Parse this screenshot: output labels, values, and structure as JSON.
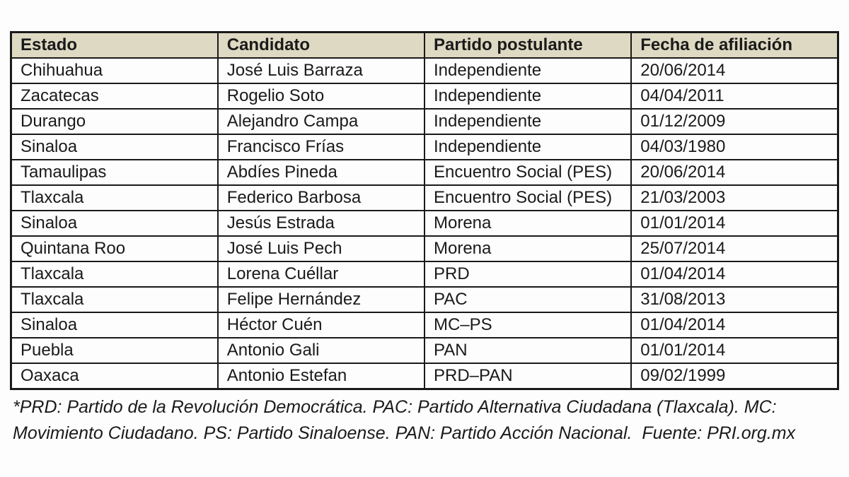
{
  "table": {
    "headers": [
      "Estado",
      "Candidato",
      "Partido postulante",
      "Fecha de afiliación"
    ],
    "rows": [
      {
        "estado": "Chihuahua",
        "candidato": "José Luis Barraza",
        "partido": "Independiente",
        "fecha": "20/06/2014"
      },
      {
        "estado": "Zacatecas",
        "candidato": "Rogelio Soto",
        "partido": "Independiente",
        "fecha": "04/04/2011"
      },
      {
        "estado": "Durango",
        "candidato": "Alejandro Campa",
        "partido": "Independiente",
        "fecha": "01/12/2009"
      },
      {
        "estado": "Sinaloa",
        "candidato": "Francisco Frías",
        "partido": "Independiente",
        "fecha": "04/03/1980"
      },
      {
        "estado": "Tamaulipas",
        "candidato": "Abdíes Pineda",
        "partido": "Encuentro Social (PES)",
        "fecha": "20/06/2014"
      },
      {
        "estado": "Tlaxcala",
        "candidato": "Federico Barbosa",
        "partido": "Encuentro Social (PES)",
        "fecha": "21/03/2003"
      },
      {
        "estado": "Sinaloa",
        "candidato": "Jesús Estrada",
        "partido": "Morena",
        "fecha": "01/01/2014"
      },
      {
        "estado": "Quintana Roo",
        "candidato": "José Luis Pech",
        "partido": "Morena",
        "fecha": "25/07/2014"
      },
      {
        "estado": "Tlaxcala",
        "candidato": "Lorena Cuéllar",
        "partido": "PRD",
        "fecha": "01/04/2014"
      },
      {
        "estado": "Tlaxcala",
        "candidato": "Felipe Hernández",
        "partido": "PAC",
        "fecha": "31/08/2013"
      },
      {
        "estado": "Sinaloa",
        "candidato": "Héctor Cuén",
        "partido": "MC–PS",
        "fecha": "01/04/2014"
      },
      {
        "estado": "Puebla",
        "candidato": "Antonio Gali",
        "partido": "PAN",
        "fecha": "01/01/2014"
      },
      {
        "estado": "Oaxaca",
        "candidato": "Antonio Estefan",
        "partido": "PRD–PAN",
        "fecha": "09/02/1999"
      }
    ]
  },
  "footnote": {
    "text": "*PRD: Partido de la Revolución Democrática. PAC: Partido Alternativa Ciudadana (Tlaxcala). MC: Movimiento Ciudadano. PS: Partido Sinaloense. PAN: Partido Acción Nacional.  Fuente: PRI.org.mx"
  },
  "colors": {
    "header_bg": "#ded9c2",
    "border": "#1a1a1a",
    "text": "#1a1a1a",
    "page_bg": "#fdfdfd"
  },
  "chart_data": {
    "type": "table",
    "title": "",
    "columns": [
      "Estado",
      "Candidato",
      "Partido postulante",
      "Fecha de afiliación"
    ],
    "rows": [
      [
        "Chihuahua",
        "José Luis Barraza",
        "Independiente",
        "20/06/2014"
      ],
      [
        "Zacatecas",
        "Rogelio Soto",
        "Independiente",
        "04/04/2011"
      ],
      [
        "Durango",
        "Alejandro Campa",
        "Independiente",
        "01/12/2009"
      ],
      [
        "Sinaloa",
        "Francisco Frías",
        "Independiente",
        "04/03/1980"
      ],
      [
        "Tamaulipas",
        "Abdíes Pineda",
        "Encuentro Social (PES)",
        "20/06/2014"
      ],
      [
        "Tlaxcala",
        "Federico Barbosa",
        "Encuentro Social (PES)",
        "21/03/2003"
      ],
      [
        "Sinaloa",
        "Jesús Estrada",
        "Morena",
        "01/01/2014"
      ],
      [
        "Quintana Roo",
        "José Luis Pech",
        "Morena",
        "25/07/2014"
      ],
      [
        "Tlaxcala",
        "Lorena Cuéllar",
        "PRD",
        "01/04/2014"
      ],
      [
        "Tlaxcala",
        "Felipe Hernández",
        "PAC",
        "31/08/2013"
      ],
      [
        "Sinaloa",
        "Héctor Cuén",
        "MC–PS",
        "01/04/2014"
      ],
      [
        "Puebla",
        "Antonio Gali",
        "PAN",
        "01/01/2014"
      ],
      [
        "Oaxaca",
        "Antonio Estefan",
        "PRD–PAN",
        "09/02/1999"
      ]
    ]
  }
}
